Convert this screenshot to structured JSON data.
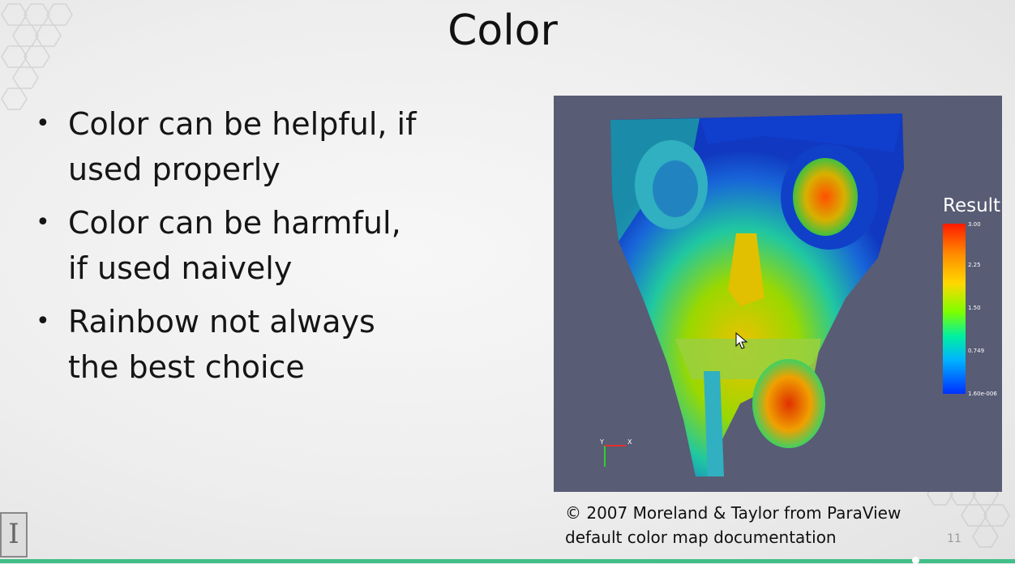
{
  "slide": {
    "title": "Color",
    "bullets": [
      {
        "line1": "Color can be helpful, if",
        "line2": "used properly"
      },
      {
        "line1": "Color can be harmful,",
        "line2": "if used naively"
      },
      {
        "line1": "Rainbow not always",
        "line2": "the best choice"
      }
    ],
    "caption": {
      "line1": "© 2007 Moreland & Taylor from ParaView",
      "line2": "default color map documentation"
    },
    "page_number": "11"
  },
  "figure": {
    "legend_title": "Result",
    "legend_ticks": [
      "3.00",
      "2.25",
      "1.50",
      "0.749",
      "1.60e-006"
    ],
    "background_color": "#585c74",
    "colormap": [
      "#ff1a00",
      "#ff8c00",
      "#ffd800",
      "#7cff00",
      "#00f0a0",
      "#00b4ff",
      "#0030ff"
    ],
    "axes_labels": [
      "Y",
      "X"
    ]
  },
  "player": {
    "progress_fraction": 0.9,
    "progress_color": "#3fbf86"
  }
}
